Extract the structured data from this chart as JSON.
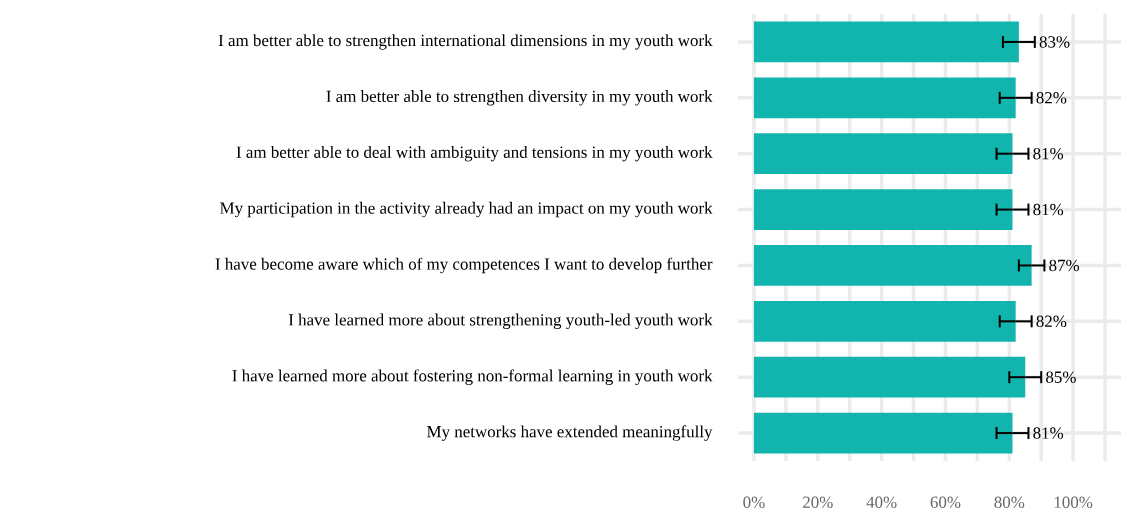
{
  "chart_data": {
    "type": "bar",
    "orientation": "horizontal",
    "categories": [
      "I am better able to strengthen international dimensions in my youth work",
      "I am better able to strengthen diversity in my youth work",
      "I am better able to deal with ambiguity and tensions in my youth work",
      "My participation in the activity already had an impact on my youth work",
      "I have become aware which of my competences I want to develop further",
      "I have learned more about strengthening youth-led youth work",
      "I have learned more about fostering non-formal learning in youth work",
      "My networks have extended meaningfully"
    ],
    "values": [
      83,
      82,
      81,
      81,
      87,
      82,
      85,
      81
    ],
    "errors": [
      5,
      5,
      5,
      5,
      4,
      5,
      5,
      5
    ],
    "value_labels": [
      "83%",
      "82%",
      "81%",
      "81%",
      "87%",
      "82%",
      "85%",
      "81%"
    ],
    "color": "#12b5ad",
    "xlim": [
      -5,
      115
    ],
    "xticks": [
      {
        "value": 0,
        "label": "0%"
      },
      {
        "value": 10,
        "label": null
      },
      {
        "value": 20,
        "label": "20%"
      },
      {
        "value": 30,
        "label": null
      },
      {
        "value": 40,
        "label": "40%"
      },
      {
        "value": 50,
        "label": null
      },
      {
        "value": 60,
        "label": "60%"
      },
      {
        "value": 70,
        "label": null
      },
      {
        "value": 80,
        "label": "80%"
      },
      {
        "value": 90,
        "label": null
      },
      {
        "value": 100,
        "label": "100%"
      },
      {
        "value": 110,
        "label": null
      }
    ],
    "grid": true
  }
}
